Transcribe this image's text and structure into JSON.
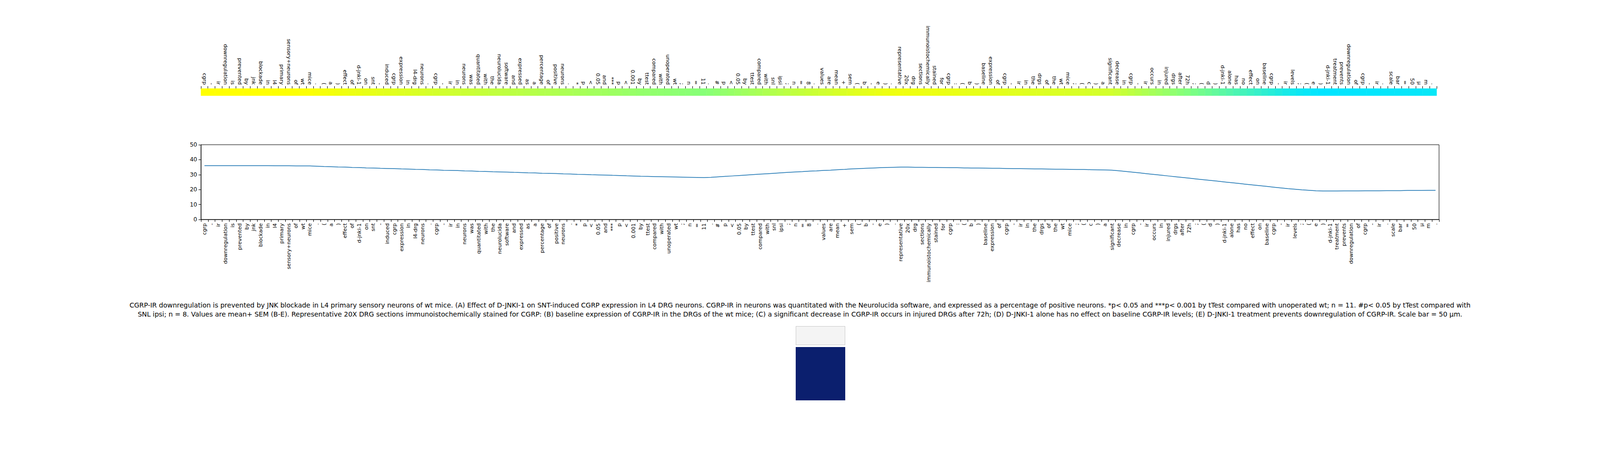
{
  "chart_data": [
    {
      "type": "heatmap",
      "categories": [
        "cgrp",
        "-",
        "ir",
        "downregulation",
        "is",
        "prevented",
        "by",
        "jnk",
        "blockade",
        "in",
        "l4",
        "primary",
        "sensory+neurons",
        "of",
        "wt",
        "mice",
        ".",
        "(",
        "a",
        ")",
        "effect",
        "of",
        "d-jnki-1",
        "on",
        "snt",
        "-",
        "induced",
        "cgrp",
        "expression",
        "in",
        "l4-drg",
        "neurons",
        ".",
        "cgrp",
        "-",
        "ir",
        "in",
        "neurons",
        "was",
        "quantitated",
        "with",
        "the",
        "neurolucida",
        "software",
        "and",
        "expressed",
        "as",
        "a",
        "percentage",
        "of",
        "positive",
        "neurons",
        ".",
        "*",
        "p",
        "<",
        "0.05",
        "and",
        "***",
        "p",
        "<",
        "0.001",
        "by",
        "ttest",
        "compared",
        "with",
        "unoperated",
        "wt",
        ";",
        "n",
        "=",
        "11",
        ".",
        "#",
        "p",
        "<",
        "0.05",
        "by",
        "ttest",
        "compared",
        "with",
        "snl",
        "ipsi",
        ";",
        "n",
        "=",
        "8",
        ".",
        "values",
        "are",
        "mean",
        "+",
        "sem",
        "(",
        "b",
        "-",
        "e",
        ")",
        ".",
        "representative",
        "20x",
        "drg",
        "sections",
        "immunoistochemically",
        "stained",
        "for",
        "cgrp",
        ":",
        "(",
        "b",
        ")",
        "baseline",
        "expression",
        "of",
        "cgrp",
        "-",
        "ir",
        "in",
        "the",
        "drgs",
        "of",
        "the",
        "wt",
        "mice",
        ";",
        "(",
        "c",
        ")",
        "a",
        "significant",
        "decrease",
        "in",
        "cgrp",
        "-",
        "ir",
        "occurs",
        "in",
        "injured",
        "drgs",
        "after",
        "72h",
        ";",
        "(",
        "d",
        ")",
        "d-jnki-1",
        "alone",
        "has",
        "no",
        "effect",
        "on",
        "baseline",
        "cgrp",
        "-",
        "ir",
        "levels",
        ";",
        "(",
        "e",
        ")",
        "d-jnki-1",
        "treatment",
        "prevents",
        "downregulation",
        "of",
        "cgrp",
        "-",
        "ir",
        ".",
        "scale",
        "bar",
        "=",
        "50",
        "μ",
        "m",
        "."
      ],
      "values": [
        36.0,
        36.0,
        36.0,
        36.0,
        36.0,
        36.0,
        36.0,
        36.0,
        36.0,
        36.0,
        35.9,
        35.9,
        35.9,
        35.8,
        35.8,
        35.8,
        35.6,
        35.4,
        35.3,
        35.1,
        35.0,
        34.8,
        34.7,
        34.5,
        34.4,
        34.2,
        34.1,
        34.0,
        33.8,
        33.7,
        33.5,
        33.4,
        33.2,
        33.1,
        32.9,
        32.8,
        32.7,
        32.5,
        32.4,
        32.2,
        32.1,
        31.9,
        31.8,
        31.7,
        31.5,
        31.4,
        31.2,
        31.1,
        30.9,
        30.8,
        30.7,
        30.5,
        30.4,
        30.2,
        30.1,
        29.9,
        29.8,
        29.7,
        29.5,
        29.4,
        29.2,
        29.1,
        28.9,
        28.8,
        28.7,
        28.6,
        28.5,
        28.4,
        28.3,
        28.2,
        28.1,
        28.0,
        28.2,
        28.5,
        28.8,
        29.1,
        29.4,
        29.7,
        30.0,
        30.3,
        30.6,
        30.9,
        31.2,
        31.5,
        31.8,
        32.0,
        32.3,
        32.5,
        32.8,
        33.0,
        33.3,
        33.5,
        33.8,
        34.0,
        34.2,
        34.4,
        34.6,
        34.8,
        34.9,
        35.0,
        35.0,
        34.9,
        34.9,
        34.8,
        34.8,
        34.7,
        34.6,
        34.6,
        34.5,
        34.4,
        34.4,
        34.3,
        34.2,
        34.2,
        34.1,
        34.0,
        34.0,
        33.9,
        33.8,
        33.8,
        33.7,
        33.6,
        33.6,
        33.5,
        33.4,
        33.4,
        33.3,
        33.2,
        33.1,
        33.0,
        32.6,
        32.1,
        31.6,
        31.1,
        30.6,
        30.1,
        29.6,
        29.1,
        28.6,
        28.1,
        27.6,
        27.1,
        26.6,
        26.1,
        25.6,
        25.1,
        24.6,
        24.1,
        23.6,
        23.1,
        22.6,
        22.1,
        21.6,
        21.1,
        20.6,
        20.2,
        19.8,
        19.5,
        19.2,
        19.0,
        19.0,
        19.0,
        19.1,
        19.1,
        19.1,
        19.2,
        19.2,
        19.2,
        19.3,
        19.3,
        19.3,
        19.4,
        19.4,
        19.4,
        19.5,
        19.5
      ]
    },
    {
      "type": "line",
      "categories": [
        "cgrp",
        "-",
        "ir",
        "downregulation",
        "is",
        "prevented",
        "by",
        "jnk",
        "blockade",
        "in",
        "l4",
        "primary",
        "sensory+neurons",
        "of",
        "wt",
        "mice",
        ".",
        "(",
        "a",
        ")",
        "effect",
        "of",
        "d-jnki-1",
        "on",
        "snt",
        "-",
        "induced",
        "cgrp",
        "expression",
        "in",
        "l4-drg",
        "neurons",
        ".",
        "cgrp",
        "-",
        "ir",
        "in",
        "neurons",
        "was",
        "quantitated",
        "with",
        "the",
        "neurolucida",
        "software",
        "and",
        "expressed",
        "as",
        "a",
        "percentage",
        "of",
        "positive",
        "neurons",
        ".",
        "*",
        "p",
        "<",
        "0.05",
        "and",
        "***",
        "p",
        "<",
        "0.001",
        "by",
        "ttest",
        "compared",
        "with",
        "unoperated",
        "wt",
        ";",
        "n",
        "=",
        "11",
        ".",
        "#",
        "p",
        "<",
        "0.05",
        "by",
        "ttest",
        "compared",
        "with",
        "snl",
        "ipsi",
        ";",
        "n",
        "=",
        "8",
        ".",
        "values",
        "are",
        "mean",
        "+",
        "sem",
        "(",
        "b",
        "-",
        "e",
        ")",
        ".",
        "representative",
        "20x",
        "drg",
        "sections",
        "immunoistochemically",
        "stained",
        "for",
        "cgrp",
        ":",
        "(",
        "b",
        ")",
        "baseline",
        "expression",
        "of",
        "cgrp",
        "-",
        "ir",
        "in",
        "the",
        "drgs",
        "of",
        "the",
        "wt",
        "mice",
        ";",
        "(",
        "c",
        ")",
        "a",
        "significant",
        "decrease",
        "in",
        "cgrp",
        "-",
        "ir",
        "occurs",
        "in",
        "injured",
        "drgs",
        "after",
        "72h",
        ";",
        "(",
        "d",
        ")",
        "d-jnki-1",
        "alone",
        "has",
        "no",
        "effect",
        "on",
        "baseline",
        "cgrp",
        "-",
        "ir",
        "levels",
        ";",
        "(",
        "e",
        ")",
        "d-jnki-1",
        "treatment",
        "prevents",
        "downregulation",
        "of",
        "cgrp",
        "-",
        "ir",
        ".",
        "scale",
        "bar",
        "=",
        "50",
        "μ",
        "m",
        "."
      ],
      "values": [
        36.0,
        36.0,
        36.0,
        36.0,
        36.0,
        36.0,
        36.0,
        36.0,
        36.0,
        36.0,
        35.9,
        35.9,
        35.9,
        35.8,
        35.8,
        35.8,
        35.6,
        35.4,
        35.3,
        35.1,
        35.0,
        34.8,
        34.7,
        34.5,
        34.4,
        34.2,
        34.1,
        34.0,
        33.8,
        33.7,
        33.5,
        33.4,
        33.2,
        33.1,
        32.9,
        32.8,
        32.7,
        32.5,
        32.4,
        32.2,
        32.1,
        31.9,
        31.8,
        31.7,
        31.5,
        31.4,
        31.2,
        31.1,
        30.9,
        30.8,
        30.7,
        30.5,
        30.4,
        30.2,
        30.1,
        29.9,
        29.8,
        29.7,
        29.5,
        29.4,
        29.2,
        29.1,
        28.9,
        28.8,
        28.7,
        28.6,
        28.5,
        28.4,
        28.3,
        28.2,
        28.1,
        28.0,
        28.2,
        28.5,
        28.8,
        29.1,
        29.4,
        29.7,
        30.0,
        30.3,
        30.6,
        30.9,
        31.2,
        31.5,
        31.8,
        32.0,
        32.3,
        32.5,
        32.8,
        33.0,
        33.3,
        33.5,
        33.8,
        34.0,
        34.2,
        34.4,
        34.6,
        34.8,
        34.9,
        35.0,
        35.0,
        34.9,
        34.9,
        34.8,
        34.8,
        34.7,
        34.6,
        34.6,
        34.5,
        34.4,
        34.4,
        34.3,
        34.2,
        34.2,
        34.1,
        34.0,
        34.0,
        33.9,
        33.8,
        33.8,
        33.7,
        33.6,
        33.6,
        33.5,
        33.4,
        33.4,
        33.3,
        33.2,
        33.1,
        33.0,
        32.6,
        32.1,
        31.6,
        31.1,
        30.6,
        30.1,
        29.6,
        29.1,
        28.6,
        28.1,
        27.6,
        27.1,
        26.6,
        26.1,
        25.6,
        25.1,
        24.6,
        24.1,
        23.6,
        23.1,
        22.6,
        22.1,
        21.6,
        21.1,
        20.6,
        20.2,
        19.8,
        19.5,
        19.2,
        19.0,
        19.0,
        19.0,
        19.1,
        19.1,
        19.1,
        19.2,
        19.2,
        19.2,
        19.3,
        19.3,
        19.3,
        19.4,
        19.4,
        19.4,
        19.5,
        19.5
      ],
      "color": "#1f77b4",
      "ylim": [
        0,
        50
      ],
      "yticks": [
        0,
        10,
        20,
        30,
        40,
        50
      ],
      "grid": false
    }
  ],
  "caption": "CGRP-IR downregulation is prevented by JNK blockade in L4 primary sensory neurons of wt mice. (A) Effect of D-JNKI-1 on SNT-induced CGRP expression in L4 DRG neurons. CGRP-IR in neurons was quantitated with the Neurolucida software, and expressed as a percentage of positive neurons. *p< 0.05 and ***p< 0.001 by tTest compared with unoperated wt; n = 11. #p< 0.05 by tTest compared with SNL ipsi; n = 8. Values are mean+ SEM (B-E). Representative 20X DRG sections immunoistochemically stained for CGRP: (B) baseline expression of CGRP-IR in the DRGs of the wt mice; (C) a significant decrease in CGRP-IR occurs in injured DRGs after 72h; (D) D-JNKI-1 alone has no effect on baseline CGRP-IR levels; (E) D-JNKI-1 treatment prevents downregulation of CGRP-IR. Scale bar = 50 μm."
}
